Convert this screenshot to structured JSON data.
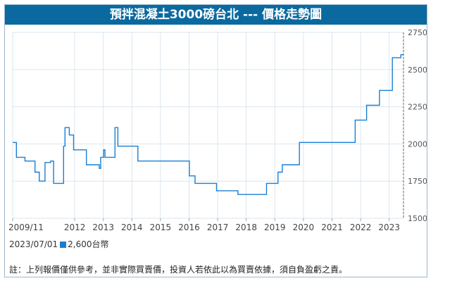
{
  "title": "預拌混凝土3000磅台北 --- 價格走勢圖",
  "legend": {
    "date": "2023/07/01",
    "value_text": "2,600台幣",
    "color": "#1a7fd4"
  },
  "note": "註：上列報價僅供參考，並非實際買賣價，投資人若依此以為買賣依據，須自負盈虧之責。",
  "chart_data": {
    "type": "line",
    "title": "預拌混凝土3000磅台北 --- 價格走勢圖",
    "xlabel": "",
    "ylabel": "",
    "x_tick_labels": [
      "2009/11",
      "2012",
      "2013",
      "2014",
      "2015",
      "2016",
      "2017",
      "2018",
      "2019",
      "2020",
      "2021",
      "2022",
      "2023"
    ],
    "x_tick_values": [
      2009.83,
      2012,
      2013,
      2014,
      2015,
      2016,
      2017,
      2018,
      2019,
      2020,
      2021,
      2022,
      2023
    ],
    "y_ticks": [
      1500,
      1750,
      2000,
      2250,
      2500,
      2750
    ],
    "y_tick_labels": [
      "1500",
      "1750",
      "2000",
      "2250",
      "2500",
      "2750"
    ],
    "ylim": [
      1500,
      2750
    ],
    "xlim": [
      2009.83,
      2023.5
    ],
    "grid": true,
    "line_color": "#1a7fd4",
    "series": [
      {
        "x": [
          2009.83,
          2009.96,
          2009.96,
          2010.26,
          2010.26,
          2010.61,
          2010.61,
          2010.76,
          2010.76,
          2010.96,
          2010.96,
          2011.16,
          2011.16,
          2011.26,
          2011.26,
          2011.61,
          2011.61,
          2011.66,
          2011.66,
          2011.81,
          2011.81,
          2011.96,
          2011.96,
          2012.41,
          2012.41,
          2012.86,
          2012.86,
          2012.91,
          2012.91,
          2013.01,
          2013.01,
          2013.06,
          2013.06,
          2013.41,
          2013.41,
          2013.51,
          2013.51,
          2014.21,
          2014.21,
          2014.51,
          2014.51,
          2016.01,
          2016.01,
          2016.21,
          2016.21,
          2016.96,
          2016.96,
          2017.71,
          2017.71,
          2018.71,
          2018.71,
          2019.11,
          2019.11,
          2019.26,
          2019.26,
          2019.86,
          2019.86,
          2021.81,
          2021.81,
          2022.21,
          2022.21,
          2022.66,
          2022.66,
          2023.11,
          2023.11,
          2023.41,
          2023.41,
          2023.5
        ],
        "y": [
          2010,
          2010,
          1910,
          1910,
          1885,
          1885,
          1810,
          1810,
          1750,
          1750,
          1875,
          1875,
          1885,
          1885,
          1735,
          1735,
          1985,
          1985,
          2110,
          2110,
          2060,
          2060,
          1960,
          1960,
          1860,
          1860,
          1835,
          1835,
          1910,
          1910,
          1960,
          1960,
          1910,
          1910,
          2110,
          2110,
          1985,
          1985,
          1885,
          1885,
          1885,
          1885,
          1785,
          1785,
          1735,
          1735,
          1685,
          1685,
          1660,
          1660,
          1735,
          1735,
          1810,
          1810,
          1860,
          1860,
          2010,
          2010,
          2160,
          2160,
          2260,
          2260,
          2360,
          2360,
          2580,
          2580,
          2600,
          2600
        ]
      }
    ]
  }
}
